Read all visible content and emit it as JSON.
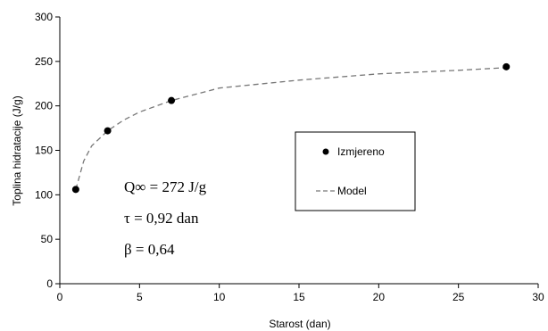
{
  "chart_data": {
    "type": "scatter",
    "title": "",
    "xlabel": "Starost (dan)",
    "ylabel": "Toplina hidratacije (J/g)",
    "xlim": [
      0,
      30
    ],
    "ylim": [
      0,
      300
    ],
    "x_ticks": [
      "0",
      "5",
      "10",
      "15",
      "20",
      "25",
      "30"
    ],
    "y_ticks": [
      "0",
      "50",
      "100",
      "150",
      "200",
      "250",
      "300"
    ],
    "grid": false,
    "legend_position": "right-middle",
    "series": [
      {
        "name": "Izmjereno",
        "style": "markers",
        "color": "#000000",
        "x": [
          1,
          3,
          7,
          28
        ],
        "y": [
          106,
          172,
          206,
          244
        ]
      },
      {
        "name": "Model",
        "style": "dashed-line",
        "color": "#777777",
        "x": [
          1,
          1.5,
          2,
          3,
          4,
          5,
          7,
          10,
          15,
          20,
          25,
          28
        ],
        "y": [
          106,
          138,
          155,
          172,
          184,
          193,
          206,
          220,
          229,
          236,
          240,
          243
        ]
      }
    ],
    "annotations": {
      "q": "Q∞ = 272 J/g",
      "tau": "τ = 0,92 dan",
      "beta": "β = 0,64"
    }
  }
}
